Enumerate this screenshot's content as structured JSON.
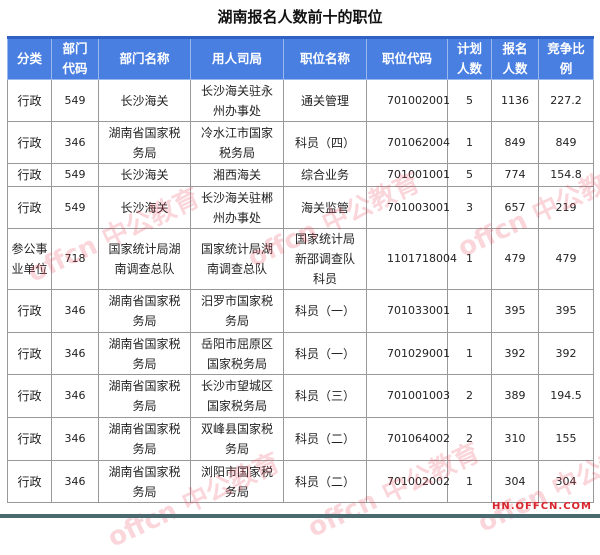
{
  "title": "湖南报名人数前十的职位",
  "headers": [
    "分类",
    "部门代码",
    "部门名称",
    "用人司局",
    "职位名称",
    "职位代码",
    "计划人数",
    "报名人数",
    "竞争比例"
  ],
  "rows": [
    [
      "行政",
      "549",
      "长沙海关",
      "长沙海关驻永州办事处",
      "通关管理",
      "701002001",
      "5",
      "1136",
      "227.2"
    ],
    [
      "行政",
      "346",
      "湖南省国家税务局",
      "冷水江市国家税务局",
      "科员（四）",
      "701062004",
      "1",
      "849",
      "849"
    ],
    [
      "行政",
      "549",
      "长沙海关",
      "湘西海关",
      "综合业务",
      "701001001",
      "5",
      "774",
      "154.8"
    ],
    [
      "行政",
      "549",
      "长沙海关",
      "长沙海关驻郴州办事处",
      "海关监管",
      "701003001",
      "3",
      "657",
      "219"
    ],
    [
      "参公事业单位",
      "718",
      "国家统计局湖南调查总队",
      "国家统计局湖南调查总队",
      "国家统计局新邵调查队科员",
      "1101718004",
      "1",
      "479",
      "479"
    ],
    [
      "行政",
      "346",
      "湖南省国家税务局",
      "汨罗市国家税务局",
      "科员（一）",
      "701033001",
      "1",
      "395",
      "395"
    ],
    [
      "行政",
      "346",
      "湖南省国家税务局",
      "岳阳市屈原区国家税务局",
      "科员（一）",
      "701029001",
      "1",
      "392",
      "392"
    ],
    [
      "行政",
      "346",
      "湖南省国家税务局",
      "长沙市望城区国家税务局",
      "科员（三）",
      "701001003",
      "2",
      "389",
      "194.5"
    ],
    [
      "行政",
      "346",
      "湖南省国家税务局",
      "双峰县国家税务局",
      "科员（二）",
      "701064002",
      "2",
      "310",
      "155"
    ],
    [
      "行政",
      "346",
      "湖南省国家税务局",
      "浏阳市国家税务局",
      "科员（二）",
      "701002002",
      "1",
      "304",
      "304"
    ]
  ],
  "watermark": "offcn 中公教育",
  "site": "HN.OFFCN.COM",
  "colors": {
    "header": "#4a7fe2",
    "watermark": "#e6465a"
  }
}
